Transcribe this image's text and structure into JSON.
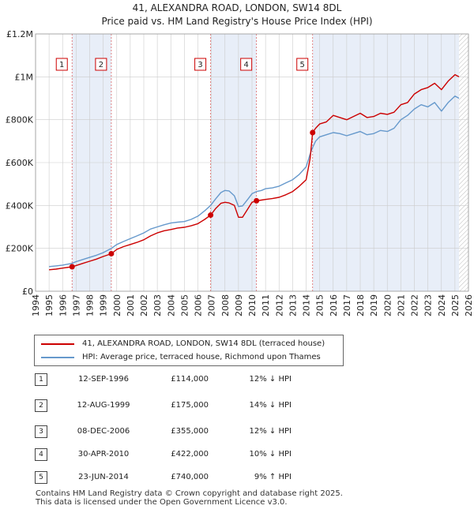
{
  "titles": {
    "line1": "41, ALEXANDRA ROAD, LONDON, SW14 8DL",
    "line2": "Price paid vs. HM Land Registry's House Price Index (HPI)"
  },
  "legend": {
    "property_label": "41, ALEXANDRA ROAD, LONDON, SW14 8DL (terraced house)",
    "hpi_label": "HPI: Average price, terraced house, Richmond upon Thames"
  },
  "sales": [
    {
      "num": "1",
      "date": "12-SEP-1996",
      "price": "£114,000",
      "hpi": "12% ↓ HPI"
    },
    {
      "num": "2",
      "date": "12-AUG-1999",
      "price": "£175,000",
      "hpi": "14% ↓ HPI"
    },
    {
      "num": "3",
      "date": "08-DEC-2006",
      "price": "£355,000",
      "hpi": "12% ↓ HPI"
    },
    {
      "num": "4",
      "date": "30-APR-2010",
      "price": "£422,000",
      "hpi": "10% ↓ HPI"
    },
    {
      "num": "5",
      "date": "23-JUN-2014",
      "price": "£740,000",
      "hpi": "9% ↑ HPI"
    }
  ],
  "footer": {
    "line1": "Contains HM Land Registry data © Crown copyright and database right 2025.",
    "line2": "This data is licensed under the Open Government Licence v3.0."
  },
  "colors": {
    "property": "#cc0000",
    "hpi": "#6699cc",
    "shade": "#e8eef8",
    "grid": "#cccccc",
    "vline": "#dd6666"
  },
  "chart_data": {
    "type": "line",
    "title": "41, ALEXANDRA ROAD, LONDON, SW14 8DL — Price paid vs. HM Land Registry's House Price Index (HPI)",
    "xlabel": "",
    "ylabel": "",
    "xlim": [
      1994,
      2026
    ],
    "ylim": [
      0,
      1200000
    ],
    "grid": true,
    "y_ticks": [
      {
        "value": 0,
        "label": "£0"
      },
      {
        "value": 200000,
        "label": "£200K"
      },
      {
        "value": 400000,
        "label": "£400K"
      },
      {
        "value": 600000,
        "label": "£600K"
      },
      {
        "value": 800000,
        "label": "£800K"
      },
      {
        "value": 1000000,
        "label": "£1M"
      },
      {
        "value": 1200000,
        "label": "£1.2M"
      }
    ],
    "x_ticks": [
      1994,
      1995,
      1996,
      1997,
      1998,
      1999,
      2000,
      2001,
      2002,
      2003,
      2004,
      2005,
      2006,
      2007,
      2008,
      2009,
      2010,
      2011,
      2012,
      2013,
      2014,
      2015,
      2016,
      2017,
      2018,
      2019,
      2020,
      2021,
      2022,
      2023,
      2024,
      2025,
      2026
    ],
    "shaded_periods": [
      [
        1996.7,
        1999.6
      ],
      [
        2006.94,
        2010.33
      ],
      [
        2014.48,
        2025.3
      ]
    ],
    "data_end": 2025.3,
    "sale_markers": [
      {
        "label": "1",
        "x": 1996.7,
        "y": 114000
      },
      {
        "label": "2",
        "x": 1999.6,
        "y": 175000
      },
      {
        "label": "3",
        "x": 2006.94,
        "y": 355000
      },
      {
        "label": "4",
        "x": 2010.33,
        "y": 422000
      },
      {
        "label": "5",
        "x": 2014.48,
        "y": 740000
      }
    ],
    "series": [
      {
        "name": "41, ALEXANDRA ROAD, LONDON, SW14 8DL (terraced house)",
        "x": [
          1995,
          1995.5,
          1996,
          1996.7,
          1997,
          1997.5,
          1998,
          1998.5,
          1999,
          1999.6,
          2000,
          2000.5,
          2001,
          2001.5,
          2002,
          2002.5,
          2003,
          2003.5,
          2004,
          2004.5,
          2005,
          2005.5,
          2006,
          2006.5,
          2006.94,
          2007.3,
          2007.7,
          2008,
          2008.3,
          2008.7,
          2009,
          2009.3,
          2009.7,
          2010,
          2010.33,
          2010.7,
          2011,
          2011.5,
          2012,
          2012.5,
          2013,
          2013.5,
          2014,
          2014.3,
          2014.48,
          2014.7,
          2015,
          2015.5,
          2016,
          2016.5,
          2017,
          2017.5,
          2018,
          2018.5,
          2019,
          2019.5,
          2020,
          2020.5,
          2021,
          2021.5,
          2022,
          2022.5,
          2023,
          2023.5,
          2024,
          2024.5,
          2025,
          2025.3
        ],
        "y": [
          100000,
          103000,
          108000,
          114000,
          120000,
          130000,
          140000,
          150000,
          162000,
          175000,
          195000,
          208000,
          218000,
          228000,
          240000,
          258000,
          272000,
          282000,
          288000,
          295000,
          298000,
          305000,
          315000,
          335000,
          355000,
          385000,
          410000,
          415000,
          412000,
          400000,
          345000,
          345000,
          385000,
          415000,
          422000,
          425000,
          428000,
          432000,
          438000,
          450000,
          465000,
          490000,
          520000,
          620000,
          740000,
          760000,
          780000,
          790000,
          820000,
          810000,
          800000,
          815000,
          830000,
          810000,
          815000,
          830000,
          825000,
          835000,
          870000,
          880000,
          920000,
          940000,
          950000,
          970000,
          940000,
          980000,
          1010000,
          1000000
        ]
      },
      {
        "name": "HPI: Average price, terraced house, Richmond upon Thames",
        "x": [
          1995,
          1995.5,
          1996,
          1996.7,
          1997,
          1997.5,
          1998,
          1998.5,
          1999,
          1999.6,
          2000,
          2000.5,
          2001,
          2001.5,
          2002,
          2002.5,
          2003,
          2003.5,
          2004,
          2004.5,
          2005,
          2005.5,
          2006,
          2006.5,
          2006.94,
          2007.3,
          2007.7,
          2008,
          2008.3,
          2008.7,
          2009,
          2009.3,
          2009.7,
          2010,
          2010.33,
          2010.7,
          2011,
          2011.5,
          2012,
          2012.5,
          2013,
          2013.5,
          2014,
          2014.3,
          2014.48,
          2014.7,
          2015,
          2015.5,
          2016,
          2016.5,
          2017,
          2017.5,
          2018,
          2018.5,
          2019,
          2019.5,
          2020,
          2020.5,
          2021,
          2021.5,
          2022,
          2022.5,
          2023,
          2023.5,
          2024,
          2024.5,
          2025,
          2025.3
        ],
        "y": [
          115000,
          118000,
          122000,
          130000,
          138000,
          148000,
          158000,
          168000,
          180000,
          200000,
          218000,
          232000,
          245000,
          258000,
          272000,
          290000,
          300000,
          310000,
          318000,
          322000,
          325000,
          335000,
          350000,
          375000,
          400000,
          430000,
          460000,
          470000,
          468000,
          445000,
          395000,
          398000,
          430000,
          455000,
          465000,
          470000,
          478000,
          482000,
          490000,
          505000,
          520000,
          545000,
          580000,
          640000,
          670000,
          700000,
          720000,
          730000,
          740000,
          735000,
          725000,
          735000,
          745000,
          730000,
          735000,
          750000,
          745000,
          760000,
          800000,
          820000,
          850000,
          870000,
          860000,
          880000,
          840000,
          880000,
          910000,
          900000
        ]
      }
    ]
  }
}
